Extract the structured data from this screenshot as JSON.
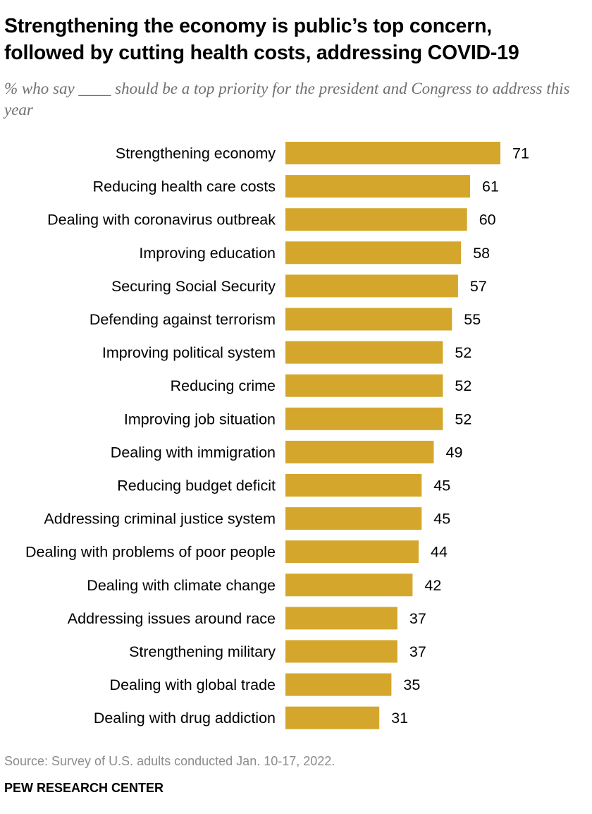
{
  "header": {
    "title_line1": "Strengthening the economy is public’s top concern,",
    "title_line2": "followed by cutting health costs, addressing COVID-19",
    "subtitle": "% who say ____ should be a top priority for the president and Congress to address this year"
  },
  "footer": {
    "source": "Source: Survey of U.S. adults conducted Jan. 10-17, 2022.",
    "organization": "PEW RESEARCH CENTER"
  },
  "colors": {
    "bar": "#D4A72C",
    "text": "#000000",
    "subtitle": "#707070",
    "source": "#8C8C8C"
  },
  "chart_data": {
    "type": "bar",
    "orientation": "horizontal",
    "title": "Strengthening the economy is public’s top concern, followed by cutting health costs, addressing COVID-19",
    "subtitle": "% who say ____ should be a top priority for the president and Congress to address this year",
    "xlabel": "",
    "ylabel": "",
    "xlim": [
      0,
      71
    ],
    "grid": false,
    "categories": [
      "Strengthening economy",
      "Reducing health care costs",
      "Dealing with coronavirus outbreak",
      "Improving education",
      "Securing Social Security",
      "Defending against terrorism",
      "Improving political system",
      "Reducing crime",
      "Improving job situation",
      "Dealing with immigration",
      "Reducing budget deficit",
      "Addressing criminal justice system",
      "Dealing with problems of poor people",
      "Dealing with climate change",
      "Addressing issues around race",
      "Strengthening military",
      "Dealing with global trade",
      "Dealing with drug addiction"
    ],
    "values": [
      71,
      61,
      60,
      58,
      57,
      55,
      52,
      52,
      52,
      49,
      45,
      45,
      44,
      42,
      37,
      37,
      35,
      31
    ]
  }
}
